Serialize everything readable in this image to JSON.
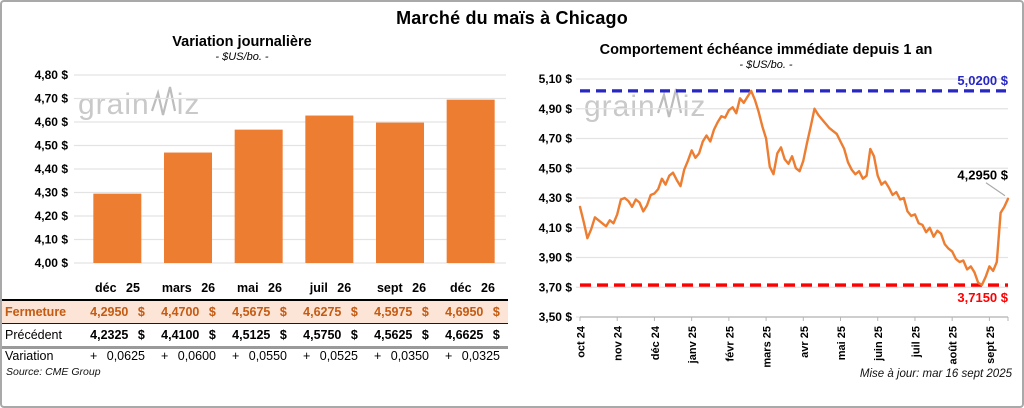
{
  "page": {
    "title": "Marché du maïs à Chicago",
    "source": "Source: CME Group",
    "updated": "Mise à jour: mar 16 sept 2025"
  },
  "watermark": {
    "part1": "grain",
    "part2": "iz"
  },
  "colors": {
    "orange": "#ED7D31",
    "grid": "#e3e3e3",
    "axis": "#b5b5b5",
    "peach_row": "#FCE4D6",
    "rust_text": "#C55A11",
    "green_text": "#00B050",
    "blue_ref": "#2727C4",
    "red_ref": "#FE0000",
    "leader": "#a9a9a9"
  },
  "table": {
    "headers": [
      "déc 25",
      "mars 26",
      "mai 26",
      "juil 26",
      "sept 26",
      "déc 26"
    ],
    "rows": [
      {
        "key": "fermeture",
        "label": "Fermeture",
        "values": [
          "4,2950 $",
          "4,4700 $",
          "4,5675 $",
          "4,6275 $",
          "4,5975 $",
          "4,6950 $"
        ]
      },
      {
        "key": "precedent",
        "label": "Précédent",
        "values": [
          "4,2325 $",
          "4,4100 $",
          "4,5125 $",
          "4,5750 $",
          "4,5625 $",
          "4,6625 $"
        ]
      },
      {
        "key": "variation",
        "label": "Variation",
        "values": [
          "+ 0,0625",
          "+ 0,0600",
          "+ 0,0550",
          "+ 0,0525",
          "+ 0,0350",
          "+ 0,0325"
        ]
      }
    ]
  },
  "chart_data": [
    {
      "id": "variation_journaliere",
      "type": "bar",
      "title": "Variation journalière",
      "subtitle": "- $US/bo. -",
      "categories": [
        "déc 25",
        "mars 26",
        "mai 26",
        "juil 26",
        "sept 26",
        "déc 26"
      ],
      "values": [
        4.295,
        4.47,
        4.5675,
        4.6275,
        4.5975,
        4.695
      ],
      "ylim": [
        4.0,
        4.8
      ],
      "ytick_step": 0.1,
      "grid": true,
      "bar_color": "#ED7D31",
      "tick_suffix": " $"
    },
    {
      "id": "echeance_immediate",
      "type": "line",
      "title": "Comportement échéance immédiate depuis 1 an",
      "subtitle": "- $US/bo. -",
      "ylim": [
        3.5,
        5.1
      ],
      "ytick_step": 0.2,
      "grid": true,
      "line_color": "#ED7D31",
      "tick_suffix": " $",
      "high_line": {
        "value": 5.02,
        "label": "5,0200 $",
        "color": "#2727C4"
      },
      "low_line": {
        "value": 3.715,
        "label": "3,7150 $",
        "color": "#FE0000"
      },
      "last_point_label": "4,2950 $",
      "months": [
        {
          "label": "oct 24",
          "values": [
            4.24,
            4.14,
            4.03,
            4.09,
            4.17,
            4.15,
            4.13,
            4.11,
            4.15,
            4.13
          ]
        },
        {
          "label": "nov 24",
          "values": [
            4.19,
            4.29,
            4.3,
            4.28,
            4.24,
            4.29,
            4.27,
            4.21,
            4.25,
            4.32
          ]
        },
        {
          "label": "déc 24",
          "values": [
            4.33,
            4.36,
            4.43,
            4.39,
            4.45,
            4.47,
            4.42,
            4.38,
            4.49,
            4.55
          ]
        },
        {
          "label": "janv 25",
          "values": [
            4.62,
            4.57,
            4.6,
            4.68,
            4.72,
            4.68,
            4.76,
            4.81,
            4.85,
            4.84
          ]
        },
        {
          "label": "févr 25",
          "values": [
            4.89,
            4.91,
            4.87,
            4.97,
            4.94,
            4.98,
            5.02,
            4.96,
            4.88,
            4.78
          ]
        },
        {
          "label": "mars 25",
          "values": [
            4.7,
            4.51,
            4.46,
            4.6,
            4.64,
            4.56,
            4.53,
            4.58,
            4.5,
            4.48
          ]
        },
        {
          "label": "avr 25",
          "values": [
            4.55,
            4.67,
            4.78,
            4.9,
            4.86,
            4.83,
            4.8,
            4.77,
            4.75,
            4.73
          ]
        },
        {
          "label": "mai 25",
          "values": [
            4.68,
            4.63,
            4.54,
            4.49,
            4.46,
            4.48,
            4.43,
            4.45,
            4.63,
            4.58
          ]
        },
        {
          "label": "juin 25",
          "values": [
            4.45,
            4.39,
            4.41,
            4.37,
            4.32,
            4.34,
            4.29,
            4.3,
            4.21,
            4.18
          ]
        },
        {
          "label": "juil 25",
          "values": [
            4.19,
            4.13,
            4.12,
            4.07,
            4.1,
            4.04,
            4.08,
            4.06,
            3.99,
            3.96
          ]
        },
        {
          "label": "août 25",
          "values": [
            3.94,
            3.89,
            3.87,
            3.88,
            3.82,
            3.84,
            3.8,
            3.73,
            3.715,
            3.77
          ]
        },
        {
          "label": "sept 25",
          "values": [
            3.84,
            3.81,
            3.87,
            4.2,
            4.24,
            4.295
          ]
        }
      ]
    }
  ]
}
